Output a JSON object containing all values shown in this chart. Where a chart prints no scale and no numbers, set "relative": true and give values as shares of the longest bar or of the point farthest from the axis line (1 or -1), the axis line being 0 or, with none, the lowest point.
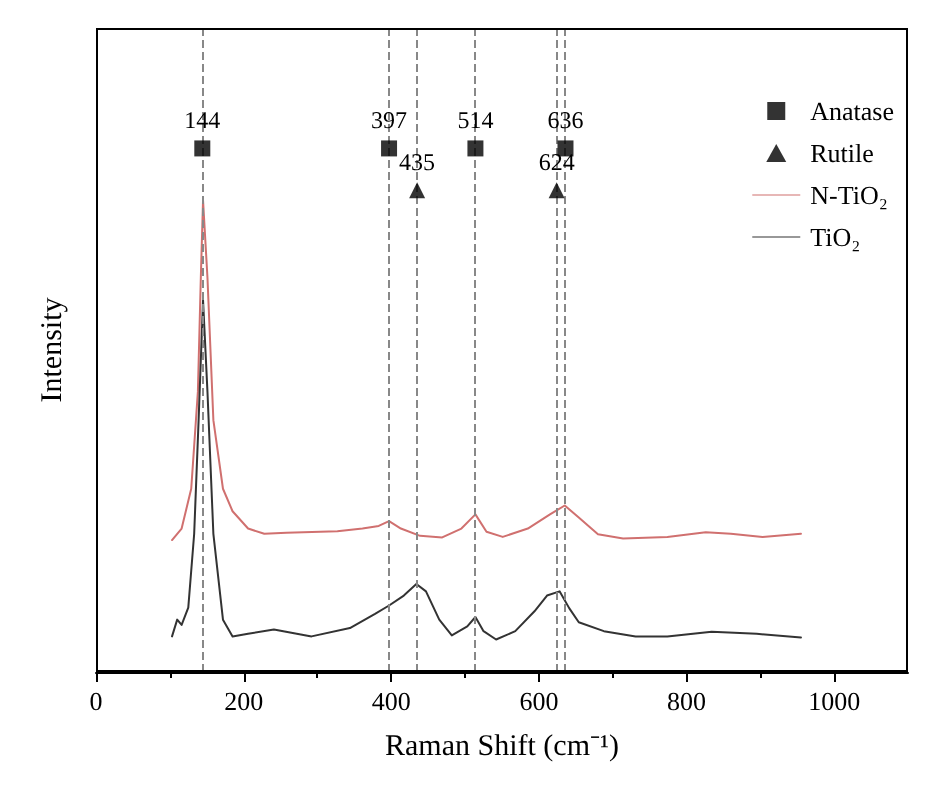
{
  "chart_data": {
    "type": "line",
    "relative": true,
    "xlabel": "Raman Shift (cm⁻¹)",
    "ylabel": "Intensity",
    "xlim": [
      0,
      1100
    ],
    "xticks": [
      0,
      200,
      400,
      600,
      800,
      1000
    ],
    "tick_labels": "x",
    "grid": false,
    "legend": "top right",
    "annotations": [
      {
        "text": "144",
        "x": 144,
        "y": 1
      },
      {
        "text": "397",
        "x": 397,
        "y": 1
      },
      {
        "text": "514",
        "x": 514,
        "y": 1
      },
      {
        "text": "636",
        "x": 636,
        "y": 1
      },
      {
        "text": "435",
        "x": 435,
        "y": 0.92
      },
      {
        "text": "624",
        "x": 624,
        "y": 0.92
      }
    ],
    "ref_lines": [
      {
        "axis": "x",
        "value": 144,
        "color": "#888888",
        "line_style": "dashed"
      },
      {
        "axis": "x",
        "value": 397,
        "color": "#888888",
        "line_style": "dashed"
      },
      {
        "axis": "x",
        "value": 435,
        "color": "#888888",
        "line_style": "dashed"
      },
      {
        "axis": "x",
        "value": 514,
        "color": "#888888",
        "line_style": "dashed"
      },
      {
        "axis": "x",
        "value": 624,
        "color": "#888888",
        "line_style": "dashed"
      },
      {
        "axis": "x",
        "value": 636,
        "color": "#888888",
        "line_style": "dashed"
      }
    ],
    "series": [
      {
        "name": "Anatase",
        "type": "scatter",
        "marker": "square",
        "color": "#000000",
        "x": [
          144,
          397,
          514,
          636
        ],
        "values": [
          1,
          1,
          1,
          1
        ]
      },
      {
        "name": "Rutile",
        "type": "scatter",
        "marker": "triangle",
        "color": "#000000",
        "x": [
          435,
          624
        ],
        "values": [
          0.92,
          0.92
        ]
      },
      {
        "name": "N-TiO₂",
        "color": "#d0706f",
        "x": [
          103,
          116,
          129,
          138,
          142,
          145,
          151,
          159,
          172,
          185,
          206,
          228,
          258,
          327,
          361,
          383,
          397,
          413,
          439,
          469,
          495,
          514,
          529,
          551,
          585,
          615,
          635,
          654,
          680,
          714,
          774,
          826,
          860,
          903,
          955
        ],
        "values": [
          0.252,
          0.274,
          0.35,
          0.535,
          0.753,
          0.901,
          0.753,
          0.481,
          0.35,
          0.307,
          0.274,
          0.264,
          0.266,
          0.269,
          0.274,
          0.279,
          0.288,
          0.274,
          0.26,
          0.257,
          0.274,
          0.301,
          0.268,
          0.258,
          0.274,
          0.301,
          0.318,
          0.295,
          0.263,
          0.255,
          0.258,
          0.267,
          0.264,
          0.258,
          0.264
        ]
      },
      {
        "name": "TiO₂",
        "color": "#333333",
        "x": [
          103,
          110,
          116,
          125,
          133,
          139,
          145,
          151,
          159,
          172,
          185,
          206,
          241,
          292,
          344,
          378,
          397,
          417,
          434,
          447,
          465,
          482,
          503,
          514,
          525,
          542,
          568,
          594,
          611,
          628,
          641,
          654,
          688,
          731,
          774,
          834,
          895,
          955
        ],
        "values": [
          0.068,
          0.1,
          0.09,
          0.123,
          0.264,
          0.481,
          0.71,
          0.535,
          0.264,
          0.1,
          0.068,
          0.073,
          0.081,
          0.068,
          0.084,
          0.111,
          0.127,
          0.146,
          0.168,
          0.154,
          0.1,
          0.07,
          0.087,
          0.105,
          0.078,
          0.062,
          0.078,
          0.116,
          0.146,
          0.154,
          0.122,
          0.095,
          0.078,
          0.068,
          0.068,
          0.077,
          0.073,
          0.066
        ]
      }
    ]
  }
}
